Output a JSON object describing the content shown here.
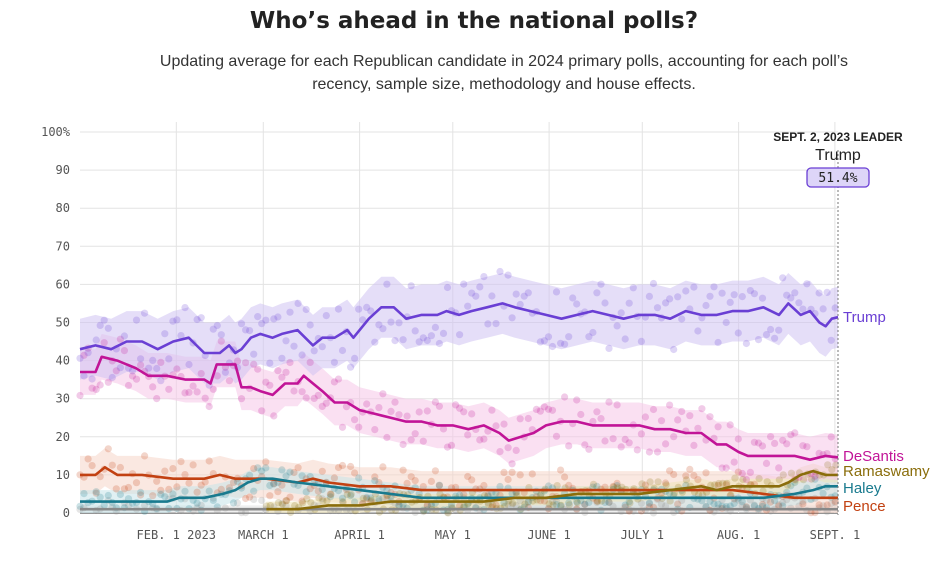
{
  "header": {
    "title": "Who’s ahead in the national polls?",
    "subtitle": "Updating average for each Republican candidate in 2024 primary polls, accounting for each poll’s recency, sample size, methodology and house effects."
  },
  "chart_data": {
    "type": "line",
    "ylim": [
      0,
      100
    ],
    "y_ticks": [
      "100%",
      "90",
      "80",
      "70",
      "60",
      "50",
      "40",
      "30",
      "20",
      "10",
      "0"
    ],
    "x_ticks": [
      {
        "label": "FEB. 1 2023",
        "day": 31
      },
      {
        "label": "MARCH 1",
        "day": 59
      },
      {
        "label": "APRIL 1",
        "day": 90
      },
      {
        "label": "MAY 1",
        "day": 120
      },
      {
        "label": "JUNE 1",
        "day": 151
      },
      {
        "label": "JULY 1",
        "day": 181
      },
      {
        "label": "AUG. 1",
        "day": 212
      },
      {
        "label": "SEPT. 1",
        "day": 243
      }
    ],
    "x_range_days": [
      0,
      244
    ],
    "grid": true,
    "leader": {
      "heading": "SEPT. 2, 2023 LEADER",
      "name": "Trump",
      "value": "51.4%"
    },
    "series": [
      {
        "name": "Trump",
        "color": "#6a3fd4",
        "band_color": "#cfc3f3",
        "band_halfwidth": 8,
        "points": [
          [
            0,
            43
          ],
          [
            5,
            44
          ],
          [
            10,
            43
          ],
          [
            15,
            45
          ],
          [
            20,
            45
          ],
          [
            25,
            43
          ],
          [
            30,
            45
          ],
          [
            35,
            46
          ],
          [
            40,
            42
          ],
          [
            45,
            42
          ],
          [
            48,
            44
          ],
          [
            50,
            42
          ],
          [
            52,
            43
          ],
          [
            55,
            46
          ],
          [
            58,
            47
          ],
          [
            62,
            46
          ],
          [
            65,
            47
          ],
          [
            70,
            48
          ],
          [
            75,
            44
          ],
          [
            78,
            46
          ],
          [
            82,
            46
          ],
          [
            86,
            48
          ],
          [
            88,
            46
          ],
          [
            93,
            51
          ],
          [
            97,
            54
          ],
          [
            101,
            54
          ],
          [
            105,
            51
          ],
          [
            110,
            52
          ],
          [
            115,
            52
          ],
          [
            118,
            53
          ],
          [
            122,
            52
          ],
          [
            126,
            53
          ],
          [
            131,
            54
          ],
          [
            136,
            55
          ],
          [
            140,
            54
          ],
          [
            145,
            53
          ],
          [
            150,
            52
          ],
          [
            155,
            51
          ],
          [
            160,
            52
          ],
          [
            165,
            53
          ],
          [
            170,
            52
          ],
          [
            175,
            51
          ],
          [
            180,
            52
          ],
          [
            185,
            52
          ],
          [
            190,
            51
          ],
          [
            195,
            53
          ],
          [
            200,
            52
          ],
          [
            205,
            52
          ],
          [
            210,
            53
          ],
          [
            215,
            53
          ],
          [
            220,
            54
          ],
          [
            225,
            52
          ],
          [
            228,
            55
          ],
          [
            232,
            52
          ],
          [
            235,
            53
          ],
          [
            238,
            50
          ],
          [
            240,
            49
          ],
          [
            242,
            51
          ],
          [
            244,
            51.4
          ]
        ]
      },
      {
        "name": "DeSantis",
        "color": "#c11497",
        "band_color": "#f6c7e8",
        "band_halfwidth": 6,
        "points": [
          [
            0,
            37
          ],
          [
            5,
            37
          ],
          [
            7,
            41
          ],
          [
            12,
            40
          ],
          [
            18,
            38
          ],
          [
            22,
            36
          ],
          [
            28,
            36
          ],
          [
            34,
            35
          ],
          [
            40,
            35
          ],
          [
            42,
            34
          ],
          [
            44,
            39
          ],
          [
            50,
            39
          ],
          [
            52,
            33
          ],
          [
            55,
            33
          ],
          [
            58,
            32
          ],
          [
            62,
            31
          ],
          [
            66,
            34
          ],
          [
            70,
            34
          ],
          [
            72,
            36
          ],
          [
            75,
            34
          ],
          [
            78,
            32
          ],
          [
            82,
            29
          ],
          [
            86,
            29
          ],
          [
            90,
            27
          ],
          [
            95,
            26
          ],
          [
            100,
            25
          ],
          [
            105,
            24
          ],
          [
            110,
            24
          ],
          [
            115,
            23
          ],
          [
            120,
            23
          ],
          [
            125,
            22
          ],
          [
            130,
            23
          ],
          [
            135,
            21
          ],
          [
            138,
            19
          ],
          [
            142,
            20
          ],
          [
            146,
            21
          ],
          [
            150,
            23
          ],
          [
            155,
            24
          ],
          [
            160,
            24
          ],
          [
            165,
            23
          ],
          [
            170,
            23
          ],
          [
            175,
            23
          ],
          [
            180,
            23
          ],
          [
            185,
            22
          ],
          [
            190,
            22
          ],
          [
            195,
            21
          ],
          [
            200,
            21
          ],
          [
            205,
            18
          ],
          [
            208,
            18
          ],
          [
            212,
            16
          ],
          [
            215,
            15
          ],
          [
            220,
            15
          ],
          [
            225,
            15
          ],
          [
            230,
            15
          ],
          [
            235,
            14
          ],
          [
            240,
            15
          ],
          [
            244,
            14.6
          ]
        ]
      },
      {
        "name": "Ramaswamy",
        "color": "#8a6d0b",
        "band_color": "#efe3b8",
        "band_halfwidth": 2,
        "points": [
          [
            60,
            1
          ],
          [
            70,
            1
          ],
          [
            80,
            2
          ],
          [
            90,
            2
          ],
          [
            100,
            3
          ],
          [
            110,
            3
          ],
          [
            120,
            3
          ],
          [
            130,
            3
          ],
          [
            140,
            4
          ],
          [
            150,
            4
          ],
          [
            160,
            5
          ],
          [
            170,
            5
          ],
          [
            180,
            5
          ],
          [
            190,
            6
          ],
          [
            200,
            7
          ],
          [
            205,
            6
          ],
          [
            210,
            7
          ],
          [
            215,
            7
          ],
          [
            220,
            7
          ],
          [
            225,
            7
          ],
          [
            228,
            8
          ],
          [
            232,
            10
          ],
          [
            236,
            11
          ],
          [
            240,
            10
          ],
          [
            244,
            10
          ]
        ]
      },
      {
        "name": "Haley",
        "color": "#197a8e",
        "band_color": "#c6e4ea",
        "band_halfwidth": 3,
        "points": [
          [
            0,
            3
          ],
          [
            10,
            3
          ],
          [
            20,
            3
          ],
          [
            28,
            3
          ],
          [
            32,
            4
          ],
          [
            40,
            4
          ],
          [
            46,
            5
          ],
          [
            50,
            6
          ],
          [
            54,
            8
          ],
          [
            58,
            9
          ],
          [
            62,
            9
          ],
          [
            70,
            8
          ],
          [
            80,
            7
          ],
          [
            90,
            6
          ],
          [
            100,
            5
          ],
          [
            110,
            4
          ],
          [
            120,
            4
          ],
          [
            130,
            4
          ],
          [
            140,
            4
          ],
          [
            150,
            4
          ],
          [
            160,
            4
          ],
          [
            170,
            4
          ],
          [
            180,
            4
          ],
          [
            190,
            4
          ],
          [
            200,
            4
          ],
          [
            210,
            4
          ],
          [
            220,
            4
          ],
          [
            230,
            5
          ],
          [
            236,
            6
          ],
          [
            240,
            7
          ],
          [
            244,
            7
          ]
        ]
      },
      {
        "name": "Pence",
        "color": "#c24112",
        "band_color": "#f6d6c9",
        "band_halfwidth": 5,
        "points": [
          [
            0,
            10
          ],
          [
            5,
            10
          ],
          [
            8,
            12
          ],
          [
            12,
            10
          ],
          [
            20,
            10
          ],
          [
            30,
            9
          ],
          [
            40,
            9
          ],
          [
            45,
            10
          ],
          [
            50,
            9
          ],
          [
            55,
            9
          ],
          [
            60,
            9
          ],
          [
            70,
            8
          ],
          [
            75,
            9
          ],
          [
            80,
            8
          ],
          [
            90,
            7
          ],
          [
            100,
            7
          ],
          [
            110,
            6
          ],
          [
            120,
            6
          ],
          [
            130,
            6
          ],
          [
            140,
            6
          ],
          [
            150,
            6
          ],
          [
            160,
            6
          ],
          [
            170,
            6
          ],
          [
            180,
            6
          ],
          [
            190,
            6
          ],
          [
            200,
            6
          ],
          [
            210,
            6
          ],
          [
            220,
            5
          ],
          [
            230,
            4
          ],
          [
            240,
            4
          ],
          [
            244,
            4
          ]
        ]
      },
      {
        "name": "",
        "color": "#888888",
        "band_color": "#e2e2e2",
        "band_halfwidth": 1,
        "points": [
          [
            0,
            1
          ],
          [
            60,
            1
          ],
          [
            120,
            1
          ],
          [
            180,
            1
          ],
          [
            244,
            1
          ]
        ]
      }
    ]
  },
  "labels": {
    "trump": "Trump",
    "desantis": "DeSantis",
    "ramaswamy": "Ramaswamy",
    "haley": "Haley",
    "pence": "Pence"
  }
}
